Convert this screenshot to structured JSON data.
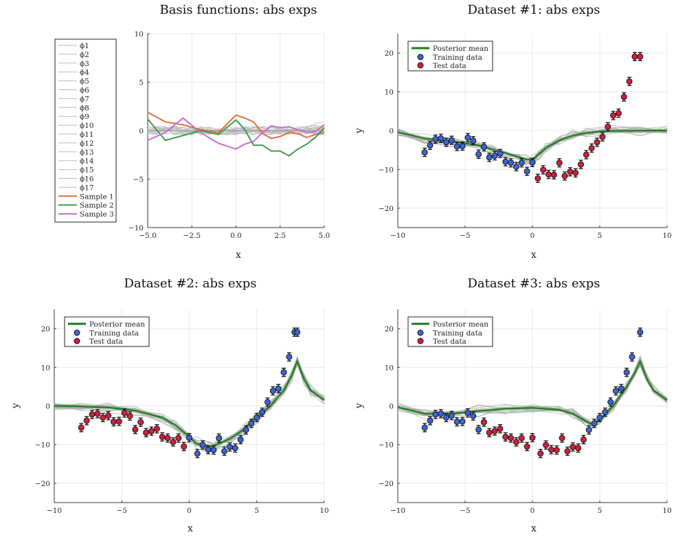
{
  "chart_data": [
    {
      "id": "basis",
      "type": "line",
      "title": "Basis functions: abs exps",
      "xlabel": "x",
      "ylabel": "",
      "xlim": [
        -5,
        5
      ],
      "ylim": [
        -10,
        10
      ],
      "xticks": [
        -5,
        -2.5,
        0,
        2.5,
        5
      ],
      "xticklabels": [
        "−5.0",
        "−2.5",
        "0.0",
        "2.5",
        "5.0"
      ],
      "yticks": [
        -10,
        -5,
        0,
        5,
        10
      ],
      "yticklabels": [
        "−10",
        "−5",
        "0",
        "5",
        "10"
      ],
      "grid": true,
      "legend_position": "outer-left",
      "basis_names": [
        "ϕ1",
        "ϕ2",
        "ϕ3",
        "ϕ4",
        "ϕ5",
        "ϕ6",
        "ϕ7",
        "ϕ8",
        "ϕ9",
        "ϕ10",
        "ϕ11",
        "ϕ12",
        "ϕ13",
        "ϕ14",
        "ϕ15",
        "ϕ16",
        "ϕ17"
      ],
      "basis_color": "#bbbbbb",
      "samples": [
        {
          "name": "Sample 1",
          "color": "#e26e3d",
          "x": [
            -5,
            -4,
            -3,
            -2,
            -1,
            0,
            0.5,
            1,
            1.5,
            2,
            2.5,
            3,
            3.5,
            4,
            4.5,
            5
          ],
          "y": [
            1.9,
            0.9,
            0.6,
            0.1,
            -0.2,
            1.6,
            1.3,
            0.9,
            -0.3,
            -0.8,
            -0.6,
            -0.2,
            -0.3,
            -0.7,
            -0.4,
            -0.2
          ]
        },
        {
          "name": "Sample 2",
          "color": "#3a9b4a",
          "x": [
            -5,
            -4,
            -3,
            -2,
            -1,
            0,
            0.5,
            1,
            1.5,
            2,
            2.5,
            3,
            3.5,
            4,
            4.5,
            5
          ],
          "y": [
            1.2,
            -1.0,
            -0.5,
            0.0,
            -0.4,
            1.1,
            0.1,
            -1.5,
            -1.5,
            -2.1,
            -2.1,
            -2.6,
            -1.9,
            -1.4,
            -0.7,
            0.3
          ]
        },
        {
          "name": "Sample 3",
          "color": "#c56dcb",
          "x": [
            -5,
            -4,
            -3,
            -2,
            -1,
            0,
            0.5,
            1,
            1.5,
            2,
            2.5,
            3,
            3.5,
            4,
            4.5,
            5
          ],
          "y": [
            -1.0,
            -0.2,
            1.3,
            -0.2,
            -1.3,
            -1.9,
            -1.4,
            -1.1,
            -0.2,
            0.5,
            0.3,
            0.4,
            0.1,
            -0.2,
            -0.1,
            0.6
          ]
        }
      ]
    },
    {
      "id": "ds1",
      "type": "scatter",
      "title": "Dataset #1: abs exps",
      "xlabel": "x",
      "ylabel": "y",
      "xlim": [
        -10,
        10
      ],
      "ylim": [
        -25,
        25
      ],
      "xticks": [
        -10,
        -5,
        0,
        5,
        10
      ],
      "xticklabels": [
        "−10",
        "−5",
        "0",
        "5",
        "10"
      ],
      "yticks": [
        -20,
        -10,
        0,
        10,
        20
      ],
      "yticklabels": [
        "−20",
        "−10",
        "0",
        "10",
        "20"
      ],
      "grid": true,
      "legend_position": "top-left",
      "legend": {
        "mean": "Posterior mean",
        "train": "Training data",
        "test": "Test data"
      },
      "colors": {
        "train": "#3b64d8",
        "test": "#d21e3c",
        "mean": "#1a7a1a",
        "samples": "#a9a9a9"
      },
      "mean": {
        "x": [
          -10,
          -8,
          -6,
          -4,
          -3,
          -2,
          -1,
          -0.5,
          0,
          0.5,
          1,
          2,
          3,
          4,
          5,
          6,
          8,
          10
        ],
        "y": [
          -0.4,
          -2.0,
          -2.8,
          -3.8,
          -4.8,
          -5.8,
          -6.8,
          -7.4,
          -7.6,
          -6.0,
          -4.5,
          -2.5,
          -1.3,
          -0.6,
          -0.2,
          -0.1,
          0,
          0
        ]
      },
      "train_x": [
        -8,
        -7.6,
        -7.2,
        -6.8,
        -6.4,
        -6.0,
        -5.6,
        -5.2,
        -4.8,
        -4.4,
        -4.0,
        -3.6,
        -3.2,
        -2.8,
        -2.4,
        -2.0,
        -1.6,
        -1.2,
        -0.8,
        -0.4,
        0.0
      ],
      "train_y": [
        -5.6,
        -3.8,
        -2.2,
        -2.0,
        -3.0,
        -2.5,
        -4.1,
        -4.0,
        -1.8,
        -2.6,
        -6.1,
        -4.2,
        -6.9,
        -6.5,
        -5.9,
        -8.0,
        -8.3,
        -9.3,
        -8.3,
        -10.5,
        -8.2
      ],
      "test_x": [
        0.0,
        0.4,
        0.8,
        1.2,
        1.6,
        2.0,
        2.4,
        2.8,
        3.2,
        3.6,
        4.0,
        4.4,
        4.8,
        5.2,
        5.6,
        6.0,
        6.4,
        6.8,
        7.2,
        7.6,
        8.0
      ],
      "test_y": [
        -8.2,
        -12.3,
        -10.1,
        -11.3,
        -11.4,
        -8.3,
        -11.7,
        -10.6,
        -10.9,
        -8.7,
        -6.2,
        -4.5,
        -3.0,
        -1.6,
        1.0,
        3.9,
        4.5,
        8.7,
        12.7,
        19.1,
        19.1
      ]
    },
    {
      "id": "ds2",
      "type": "scatter",
      "title": "Dataset #2: abs exps",
      "xlabel": "x",
      "ylabel": "y",
      "xlim": [
        -10,
        10
      ],
      "ylim": [
        -25,
        25
      ],
      "xticks": [
        -10,
        -5,
        0,
        5,
        10
      ],
      "xticklabels": [
        "−10",
        "−5",
        "0",
        "5",
        "10"
      ],
      "yticks": [
        -20,
        -10,
        0,
        10,
        20
      ],
      "yticklabels": [
        "−20",
        "−10",
        "0",
        "10",
        "20"
      ],
      "grid": true,
      "legend_position": "top-left",
      "legend": {
        "mean": "Posterior mean",
        "train": "Training data",
        "test": "Test data"
      },
      "colors": {
        "train": "#3b64d8",
        "test": "#d21e3c",
        "mean": "#1a7a1a",
        "samples": "#a9a9a9"
      },
      "mean": {
        "x": [
          -10,
          -8,
          -6,
          -4,
          -2,
          -1,
          0,
          0.5,
          1,
          1.5,
          2,
          3,
          4,
          5,
          6,
          7,
          7.6,
          8,
          8.5,
          9,
          10
        ],
        "y": [
          0,
          -0.1,
          -0.4,
          -1.2,
          -3.0,
          -5.0,
          -8.0,
          -9.6,
          -10.3,
          -10.6,
          -10.0,
          -8.5,
          -6.2,
          -3.0,
          0.0,
          4.0,
          8.0,
          11.5,
          7.0,
          4.0,
          1.5
        ]
      },
      "train_x": [
        0.0,
        0.6,
        1.0,
        1.4,
        1.8,
        2.2,
        2.6,
        3.0,
        3.4,
        3.8,
        4.2,
        4.6,
        5.0,
        5.4,
        5.8,
        6.2,
        6.6,
        7.0,
        7.4,
        7.8,
        8.0
      ],
      "train_y": [
        -8.2,
        -12.3,
        -10.1,
        -11.3,
        -11.4,
        -8.3,
        -11.7,
        -10.6,
        -10.9,
        -8.7,
        -6.2,
        -4.5,
        -3.0,
        -1.6,
        1.0,
        3.9,
        4.5,
        8.7,
        12.7,
        19.1,
        19.1
      ],
      "test_x": [
        -8,
        -7.6,
        -7.2,
        -6.8,
        -6.4,
        -6.0,
        -5.6,
        -5.2,
        -4.8,
        -4.4,
        -4.0,
        -3.6,
        -3.2,
        -2.8,
        -2.4,
        -2.0,
        -1.6,
        -1.2,
        -0.8,
        -0.4
      ],
      "test_y": [
        -5.6,
        -3.8,
        -2.2,
        -2.0,
        -3.0,
        -2.5,
        -4.1,
        -4.0,
        -1.8,
        -2.6,
        -6.1,
        -4.2,
        -6.9,
        -6.5,
        -5.9,
        -8.0,
        -8.3,
        -9.3,
        -8.3,
        -10.5
      ]
    },
    {
      "id": "ds3",
      "type": "scatter",
      "title": "Dataset #3: abs exps",
      "xlabel": "x",
      "ylabel": "y",
      "xlim": [
        -10,
        10
      ],
      "ylim": [
        -25,
        25
      ],
      "xticks": [
        -10,
        -5,
        0,
        5,
        10
      ],
      "xticklabels": [
        "−10",
        "−5",
        "0",
        "5",
        "10"
      ],
      "yticks": [
        -20,
        -10,
        0,
        10,
        20
      ],
      "yticklabels": [
        "−20",
        "−10",
        "0",
        "10",
        "20"
      ],
      "grid": true,
      "legend_position": "top-left",
      "legend": {
        "mean": "Posterior mean",
        "train": "Training data",
        "test": "Test data"
      },
      "colors": {
        "train": "#3b64d8",
        "test": "#d21e3c",
        "mean": "#1a7a1a",
        "samples": "#a9a9a9"
      },
      "mean": {
        "x": [
          -10,
          -8,
          -6,
          -4,
          -2,
          0,
          2,
          3,
          4,
          4.5,
          5,
          6,
          7,
          7.6,
          8,
          8.5,
          9,
          10
        ],
        "y": [
          -0.3,
          -2.0,
          -2.0,
          -1.3,
          -0.7,
          -0.5,
          -1.0,
          -2.0,
          -4.0,
          -4.8,
          -3.5,
          0.0,
          5.0,
          8.5,
          11.5,
          7.0,
          4.0,
          1.5
        ]
      },
      "train_x": [
        -8,
        -7.6,
        -7.2,
        -6.8,
        -6.4,
        -6.0,
        -5.6,
        -5.2,
        -4.8,
        -4.4,
        -4.0,
        4.2,
        4.6,
        5.0,
        5.4,
        5.8,
        6.2,
        6.6,
        7.0,
        7.4,
        8.0
      ],
      "train_y": [
        -5.6,
        -3.8,
        -2.2,
        -2.0,
        -3.0,
        -2.5,
        -4.1,
        -4.0,
        -1.8,
        -2.6,
        -6.1,
        -6.2,
        -4.5,
        -3.0,
        -1.6,
        1.0,
        3.9,
        4.5,
        8.7,
        12.7,
        19.1
      ],
      "test_x": [
        -3.6,
        -3.2,
        -2.8,
        -2.4,
        -2.0,
        -1.6,
        -1.2,
        -0.8,
        -0.4,
        0.0,
        0.6,
        1.0,
        1.4,
        1.8,
        2.2,
        2.6,
        3.0,
        3.4,
        3.8
      ],
      "test_y": [
        -4.2,
        -6.9,
        -6.5,
        -5.9,
        -8.0,
        -8.3,
        -9.3,
        -8.3,
        -10.5,
        -8.2,
        -12.3,
        -10.1,
        -11.3,
        -11.4,
        -8.3,
        -11.7,
        -10.6,
        -10.9,
        -8.7
      ]
    }
  ]
}
